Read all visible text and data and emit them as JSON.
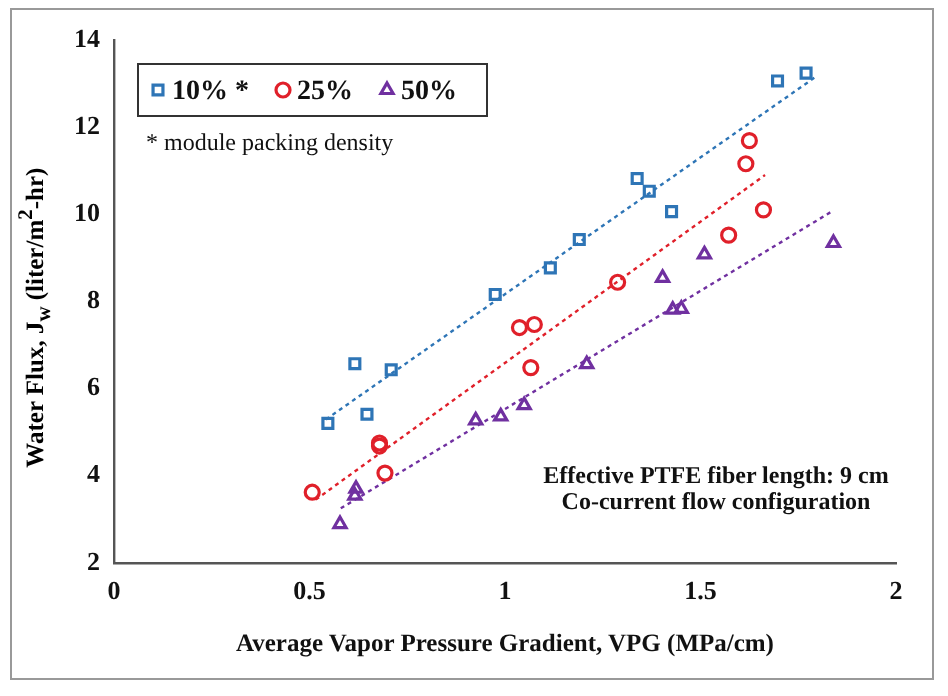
{
  "chart_data": {
    "type": "scatter",
    "xlabel": "Average Vapor Pressure Gradient, VPG (MPa/cm)",
    "ylabel": "Water Flux, J$_{w}$ (liter/m$^{2}$-hr)",
    "xlim": [
      0,
      2
    ],
    "xticks": [
      0,
      0.5,
      1,
      1.5,
      2
    ],
    "ylim": [
      2,
      14
    ],
    "yticks": [
      2,
      4,
      6,
      8,
      10,
      12,
      14
    ],
    "grid": false,
    "legend": "top left",
    "annotations": [
      "* module packing density",
      "Effective PTFE fiber length: 9 cm",
      "Co-current flow configuration"
    ],
    "series": [
      {
        "name": "10% *",
        "color": "#2e75b6",
        "marker": "square",
        "x": [
          0.547,
          0.616,
          0.647,
          0.709,
          0.975,
          1.116,
          1.19,
          1.338,
          1.369,
          1.426,
          1.697,
          1.77
        ],
        "values": [
          5.2,
          6.57,
          5.41,
          6.43,
          8.16,
          8.77,
          9.42,
          10.82,
          10.53,
          10.06,
          13.06,
          13.24
        ]
      },
      {
        "name": "25%",
        "color": "#e0202a",
        "marker": "circle",
        "x": [
          0.507,
          0.679,
          0.679,
          0.693,
          1.037,
          1.075,
          1.066,
          1.288,
          1.572,
          1.616,
          1.625,
          1.661
        ],
        "values": [
          3.62,
          4.75,
          4.68,
          4.06,
          7.4,
          7.47,
          6.48,
          8.44,
          9.52,
          11.16,
          11.69,
          10.1
        ]
      },
      {
        "name": "50%",
        "color": "#7030a0",
        "marker": "triangle",
        "x": [
          0.578,
          0.619,
          0.616,
          0.925,
          0.989,
          1.049,
          1.209,
          1.403,
          1.429,
          1.451,
          1.51,
          1.84
        ],
        "values": [
          2.89,
          3.7,
          3.54,
          5.27,
          5.36,
          5.62,
          6.56,
          8.54,
          7.81,
          7.83,
          9.08,
          9.34
        ]
      },
      {
        "type": "line",
        "color": "#2e75b6",
        "marker": "none",
        "line_style": "dotted",
        "x": [
          0.542,
          1.797
        ],
        "values": [
          5.29,
          13.17
        ]
      },
      {
        "type": "line",
        "color": "#e0202a",
        "marker": "none",
        "line_style": "dotted",
        "x": [
          0.516,
          1.665
        ],
        "values": [
          3.45,
          10.9
        ]
      },
      {
        "type": "line",
        "color": "#7030a0",
        "marker": "none",
        "line_style": "dotted",
        "x": [
          0.58,
          1.835
        ],
        "values": [
          3.25,
          10.06
        ]
      }
    ]
  }
}
